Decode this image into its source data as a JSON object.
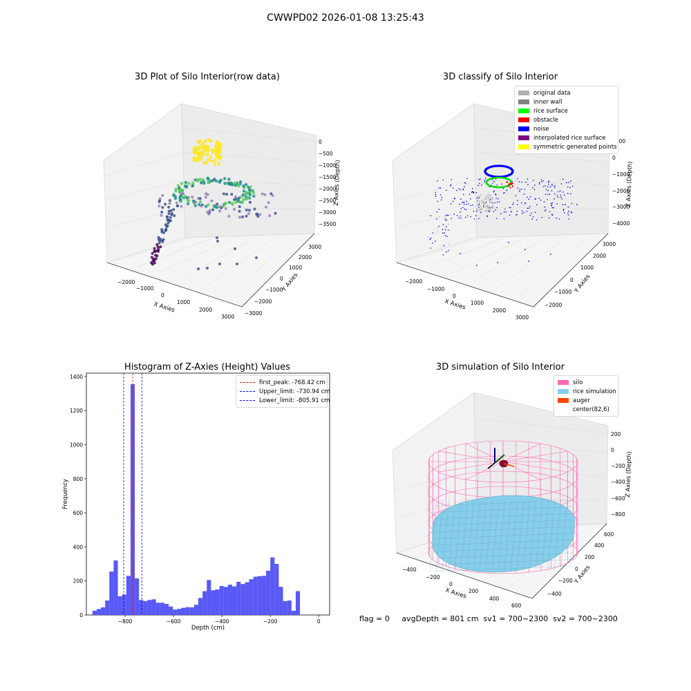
{
  "figure": {
    "suptitle": "CWWPD02 2026-01-08 13:25:43",
    "footer": "flag = 0     avgDepth = 801 cm  sv1 = 700~2300  sv2 = 700~2300"
  },
  "panels": {
    "raw": {
      "title": "3D Plot of Silo Interior(row data)",
      "xlabel": "X Axies",
      "ylabel": "Y Axies",
      "zlabel": "Z Axies (Depth)",
      "xticks": [
        "−2000",
        "−1000",
        "0",
        "1000",
        "2000",
        "3000"
      ],
      "yticks": [
        "−3000",
        "−2000",
        "−1000",
        "0",
        "1000",
        "2000",
        "3000"
      ],
      "zticks": [
        "−3500",
        "−3000",
        "−2500",
        "−2000",
        "−1500",
        "−1000",
        "−500",
        "0"
      ]
    },
    "classify": {
      "title": "3D classify of Silo Interior",
      "xlabel": "X Axies",
      "ylabel": "Y Axies",
      "zlabel": "Z Axies (Depth)",
      "xticks": [
        "−2000",
        "−1000",
        "0",
        "1000",
        "2000",
        "3000"
      ],
      "yticks": [
        "−2000",
        "−1000",
        "0",
        "1000",
        "2000",
        "3000"
      ],
      "zticks": [
        "−4000",
        "−3000",
        "−2000",
        "−1000",
        "0",
        "1000"
      ],
      "legend": [
        {
          "label": "original data",
          "color": "#b0b0b0"
        },
        {
          "label": "inner wall",
          "color": "#808080"
        },
        {
          "label": "rice surface",
          "color": "#00ff00"
        },
        {
          "label": "obstacle",
          "color": "#ff0000"
        },
        {
          "label": "noise",
          "color": "#0000ff"
        },
        {
          "label": "interpolated rice surface",
          "color": "#800080"
        },
        {
          "label": "symmetric generated points",
          "color": "#ffff00"
        }
      ]
    },
    "simulation": {
      "title": "3D simulation of Silo Interior",
      "xlabel": "X Axies",
      "ylabel": "Y Axies",
      "zlabel": "Z Axies (Depth)",
      "xticks": [
        "−400",
        "−200",
        "0",
        "200",
        "400",
        "600"
      ],
      "yticks": [
        "−400",
        "−200",
        "0",
        "200",
        "400",
        "600"
      ],
      "zticks": [
        "−800",
        "−600",
        "−400",
        "−200",
        "0",
        "200"
      ],
      "legend": [
        {
          "label": "silo",
          "color": "#ff69b4"
        },
        {
          "label": "rice simulation",
          "color": "#87ceeb"
        },
        {
          "label": "auger",
          "color": "#ff4500"
        },
        {
          "label": "center(82,6)",
          "color": ""
        }
      ]
    }
  },
  "chart_data": {
    "type": "bar",
    "title": "Histogram of Z-Axies (Height) Values",
    "xlabel": "Depth (cm)",
    "ylabel": "Frequency",
    "xlim": [
      -960,
      45
    ],
    "ylim": [
      0,
      1420
    ],
    "xticks": [
      -800,
      -600,
      -400,
      -200,
      0
    ],
    "yticks": [
      0,
      200,
      400,
      600,
      800,
      1000,
      1200,
      1400
    ],
    "bin_width": 17.5,
    "bin_start": -935,
    "values": [
      25,
      35,
      45,
      85,
      255,
      320,
      110,
      120,
      230,
      1355,
      215,
      88,
      82,
      88,
      92,
      72,
      72,
      65,
      50,
      32,
      36,
      42,
      46,
      45,
      60,
      100,
      140,
      205,
      145,
      150,
      170,
      165,
      178,
      168,
      195,
      182,
      192,
      210,
      225,
      228,
      230,
      260,
      338,
      300,
      165,
      82,
      85,
      25,
      140
    ],
    "lines": [
      {
        "label": "first_peak: -768.42 cm",
        "x": -768.42,
        "color": "#ff0000"
      },
      {
        "label": "Upper_limit: -730.94 cm",
        "x": -730.94,
        "color": "#0000ff"
      },
      {
        "label": "Lower_limit: -805.91 cm",
        "x": -805.91,
        "color": "#0000ff"
      }
    ],
    "bar_color": "#5050f5",
    "legend_position": "top-right"
  }
}
